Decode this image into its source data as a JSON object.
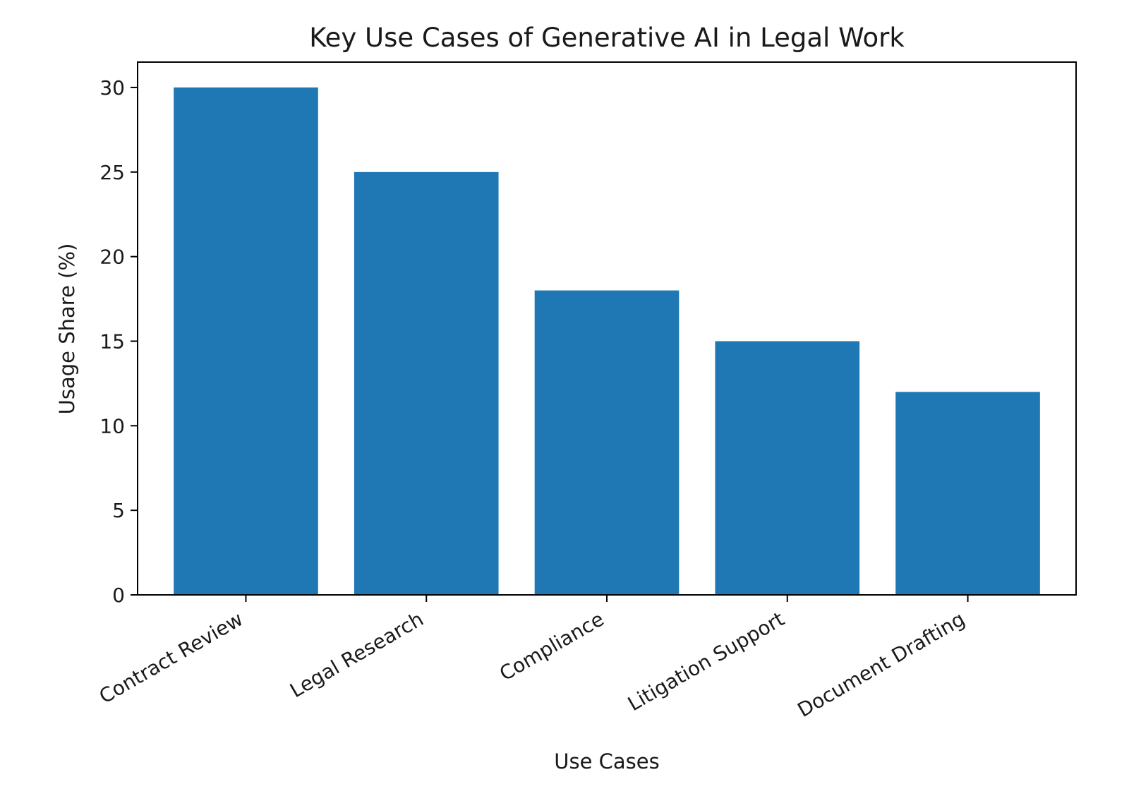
{
  "chart_data": {
    "type": "bar",
    "title": "Key Use Cases of Generative AI in Legal Work",
    "xlabel": "Use Cases",
    "ylabel": "Usage Share (%)",
    "categories": [
      "Contract Review",
      "Legal Research",
      "Compliance",
      "Litigation Support",
      "Document Drafting"
    ],
    "values": [
      30,
      25,
      18,
      15,
      12
    ],
    "ylim": [
      0,
      31.5
    ],
    "yticks": [
      0,
      5,
      10,
      15,
      20,
      25,
      30
    ],
    "bar_color": "#1f77b4",
    "grid": false,
    "legend": "none"
  }
}
